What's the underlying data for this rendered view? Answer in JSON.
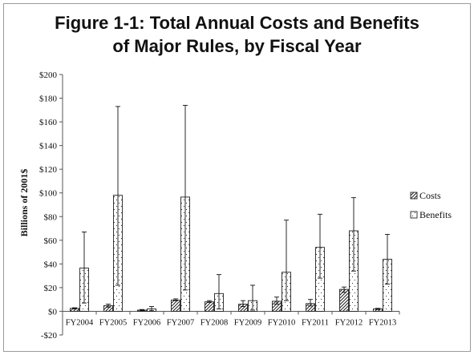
{
  "title_line1": "Figure 1-1:  Total Annual Costs and Benefits",
  "title_line2": "of Major Rules, by Fiscal Year",
  "chart_data": {
    "type": "bar",
    "title": "Figure 1-1:  Total Annual Costs and Benefits of Major Rules, by Fiscal Year",
    "xlabel": "",
    "ylabel": "Billions of 2001$",
    "ylim": [
      -20,
      200
    ],
    "yticks": [
      -20,
      0,
      20,
      40,
      60,
      80,
      100,
      120,
      140,
      160,
      180,
      200
    ],
    "ytick_labels": [
      "-$20",
      "$0",
      "$20",
      "$40",
      "$60",
      "$80",
      "$100",
      "$120",
      "$140",
      "$160",
      "$180",
      "$200"
    ],
    "grid": false,
    "legend_position": "right",
    "categories": [
      "FY2004",
      "FY2005",
      "FY2006",
      "FY2007",
      "FY2008",
      "FY2009",
      "FY2010",
      "FY2011",
      "FY2012",
      "FY2013"
    ],
    "series": [
      {
        "name": "Costs",
        "pattern": "diagonal-hatch",
        "values": [
          2.5,
          4.8,
          1.0,
          9.5,
          8.0,
          6.0,
          8.5,
          6.5,
          18.5,
          2.0
        ],
        "err_low": [
          2.0,
          3.5,
          0.5,
          9.0,
          7.5,
          4.0,
          6.0,
          4.5,
          16.0,
          1.5
        ],
        "err_high": [
          3.0,
          6.0,
          1.5,
          10.5,
          9.0,
          9.0,
          12.0,
          10.0,
          20.5,
          2.5
        ]
      },
      {
        "name": "Benefits",
        "pattern": "dotted",
        "values": [
          36.5,
          98.0,
          2.0,
          96.5,
          15.0,
          9.0,
          33.0,
          54.0,
          68.0,
          44.0
        ],
        "err_low": [
          7.0,
          22.0,
          0.5,
          18.0,
          2.0,
          1.0,
          9.0,
          28.0,
          34.0,
          23.0
        ],
        "err_high": [
          67.0,
          173.0,
          4.0,
          174.0,
          31.0,
          22.0,
          77.0,
          82.0,
          96.0,
          65.0
        ]
      }
    ]
  }
}
